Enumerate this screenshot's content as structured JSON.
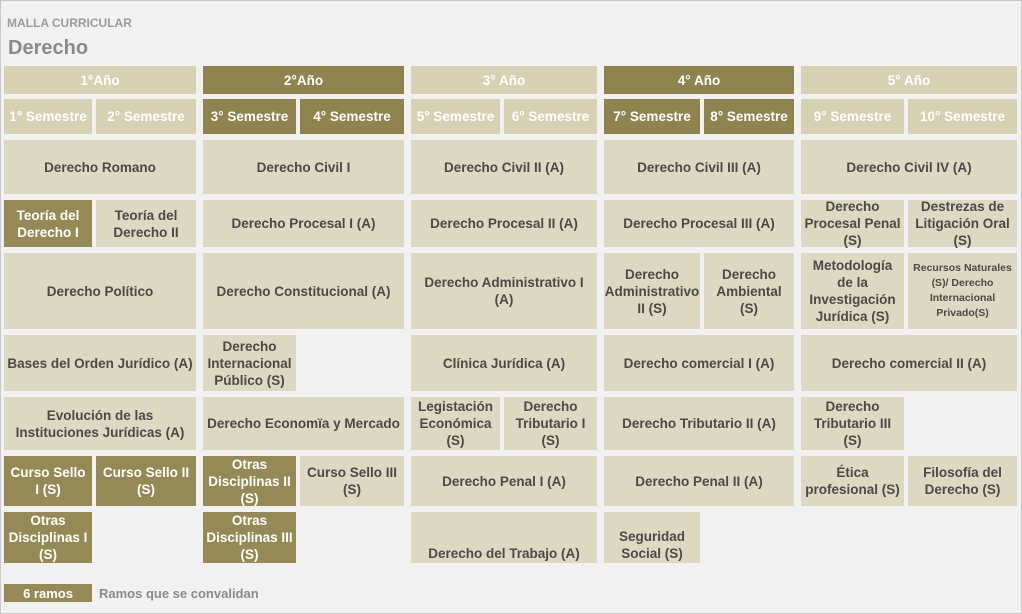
{
  "header": {
    "subtitle": "MALLA CURRICULAR",
    "title": "Derecho"
  },
  "years": [
    "1°Año",
    "2°Año",
    "3° Año",
    "4° Año",
    "5° Año"
  ],
  "semesters": [
    "1° Semestre",
    "2° Semestre",
    "3° Semestre",
    "4° Semestre",
    "5° Semestre",
    "6° Semestre",
    "7° Semestre",
    "8° Semestre",
    "9° Semestre",
    "10° Semestre"
  ],
  "courses": {
    "derecho_romano": "Derecho Romano",
    "derecho_civil_1": "Derecho Civil I",
    "derecho_civil_2": "Derecho Civil II (A)",
    "derecho_civil_3": "Derecho Civil III (A)",
    "derecho_civil_4": "Derecho Civil IV (A)",
    "teoria_derecho_1": "Teoría del Derecho I",
    "teoria_derecho_2": "Teoría del Derecho II",
    "procesal_1": "Derecho Procesal I (A)",
    "procesal_2": "Derecho Procesal II (A)",
    "procesal_3": "Derecho Procesal III (A)",
    "procesal_penal": "Derecho Procesal Penal (S)",
    "destrezas": "Destrezas de Litigación Oral (S)",
    "politico": "Derecho Político",
    "constitucional": "Derecho Constitucional (A)",
    "administrativo_1": "Derecho Administrativo I (A)",
    "administrativo_2": "Derecho Administrativo II (S)",
    "ambiental": "Derecho Ambiental (S)",
    "metodologia": "Metodología de la Investigación Jurídica (S)",
    "recursos": "Recursos Naturales (S)/ Derecho Internacional Privado(S)",
    "bases": "Bases del Orden Jurídico (A)",
    "internacional_publico": "Derecho Internacional Público (S)",
    "clinica": "Clínica Jurídica (A)",
    "comercial_1": "Derecho comercial I (A)",
    "comercial_2": "Derecho comercial II (A)",
    "evolucion": "Evolución de las Instituciones Jurídicas (A)",
    "economia": "Derecho Economïa y Mercado",
    "legislacion": "Legistación Económica (S)",
    "tributario_1": "Derecho Tributario I (S)",
    "tributario_2": "Derecho Tributario II (A)",
    "tributario_3": "Derecho Tributario III (S)",
    "sello_1": "Curso Sello I (S)",
    "sello_2": "Curso Sello II (S)",
    "otras_2": "Otras Disciplinas II (S)",
    "sello_3": "Curso Sello III (S)",
    "penal_1": "Derecho Penal I (A)",
    "penal_2": "Derecho Penal II (A)",
    "etica": "Ética profesional (S)",
    "filosofia": "Filosofía del Derecho (S)",
    "otras_1": "Otras Disciplinas I (S)",
    "otras_3": "Otras Disciplinas III (S)",
    "trabajo": "Derecho del Trabajo (A)",
    "seguridad": "Seguridad Social (S)"
  },
  "legend": {
    "box": "6 ramos",
    "text": "Ramos que se convalidan"
  }
}
